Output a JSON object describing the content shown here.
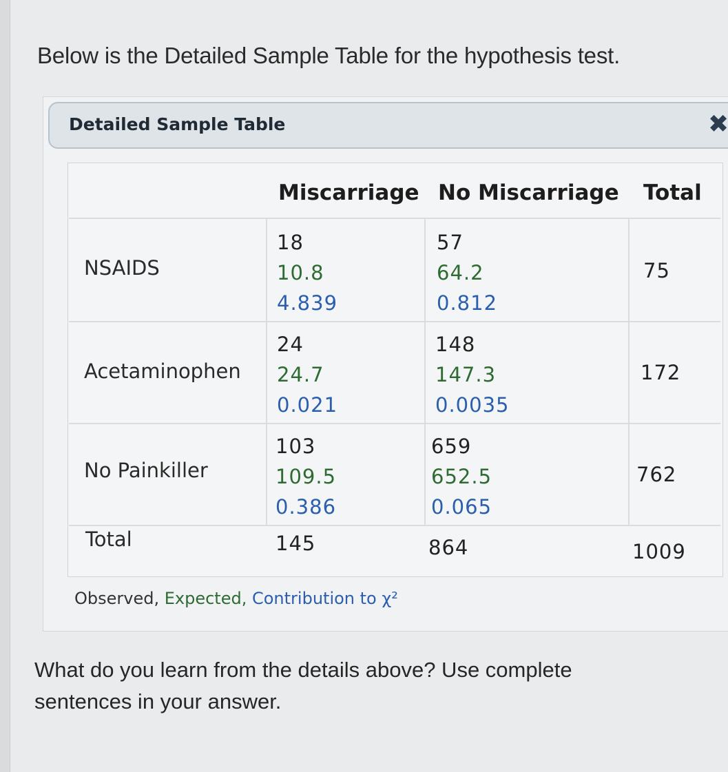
{
  "intro_text": "Below is the Detailed Sample Table for the hypothesis test.",
  "panel": {
    "title": "Detailed Sample Table",
    "close_icon": "close-icon"
  },
  "table": {
    "columns": [
      "Miscarriage",
      "No Miscarriage",
      "Total"
    ],
    "rows": [
      {
        "label": "NSAIDS",
        "miscarriage": {
          "observed": "18",
          "expected": "10.8",
          "contribution": "4.839"
        },
        "no_miscarriage": {
          "observed": "57",
          "expected": "64.2",
          "contribution": "0.812"
        },
        "total": "75"
      },
      {
        "label": "Acetaminophen",
        "miscarriage": {
          "observed": "24",
          "expected": "24.7",
          "contribution": "0.021"
        },
        "no_miscarriage": {
          "observed": "148",
          "expected": "147.3",
          "contribution": "0.0035"
        },
        "total": "172"
      },
      {
        "label": "No Painkiller",
        "miscarriage": {
          "observed": "103",
          "expected": "109.5",
          "contribution": "0.386"
        },
        "no_miscarriage": {
          "observed": "659",
          "expected": "652.5",
          "contribution": "0.065"
        },
        "total": "762"
      }
    ],
    "totals": {
      "label": "Total",
      "miscarriage": "145",
      "no_miscarriage": "864",
      "total": "1009"
    }
  },
  "legend": {
    "observed": "Observed,",
    "expected": "Expected,",
    "contribution": "Contribution to χ²"
  },
  "colors": {
    "expected": "#2e6b33",
    "contribution": "#2b5fae"
  },
  "question_text": "What do you learn from the details above? Use complete sentences in your answer."
}
